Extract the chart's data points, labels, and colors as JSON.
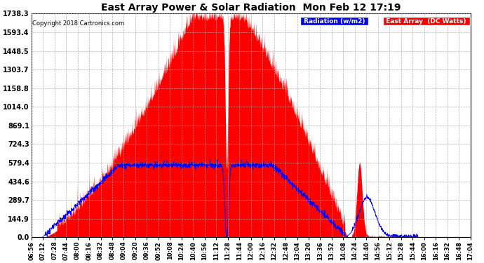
{
  "title": "East Array Power & Solar Radiation  Mon Feb 12 17:19",
  "copyright": "Copyright 2018 Cartronics.com",
  "bg_color": "#ffffff",
  "plot_bg_color": "#ffffff",
  "grid_color": "#aaaaaa",
  "red_fill_color": "#ff0000",
  "blue_line_color": "#0000ff",
  "yticks": [
    0.0,
    144.9,
    289.7,
    434.6,
    579.4,
    724.3,
    869.1,
    1014.0,
    1158.8,
    1303.7,
    1448.5,
    1593.4,
    1738.3
  ],
  "ymax": 1738.3,
  "legend_radiation_label": "Radiation (w/m2)",
  "legend_east_label": "East Array  (DC Watts)",
  "legend_radiation_bg": "#0000ff",
  "legend_east_bg": "#ff0000",
  "xtick_labels": [
    "06:56",
    "07:12",
    "07:28",
    "07:44",
    "08:00",
    "08:16",
    "08:32",
    "08:48",
    "09:04",
    "09:20",
    "09:36",
    "09:52",
    "10:08",
    "10:24",
    "10:40",
    "10:56",
    "11:12",
    "11:28",
    "11:44",
    "12:00",
    "12:16",
    "12:32",
    "12:48",
    "13:04",
    "13:20",
    "13:36",
    "13:52",
    "14:08",
    "14:24",
    "14:40",
    "14:56",
    "15:12",
    "15:28",
    "15:44",
    "16:00",
    "16:16",
    "16:32",
    "16:48",
    "17:04"
  ]
}
